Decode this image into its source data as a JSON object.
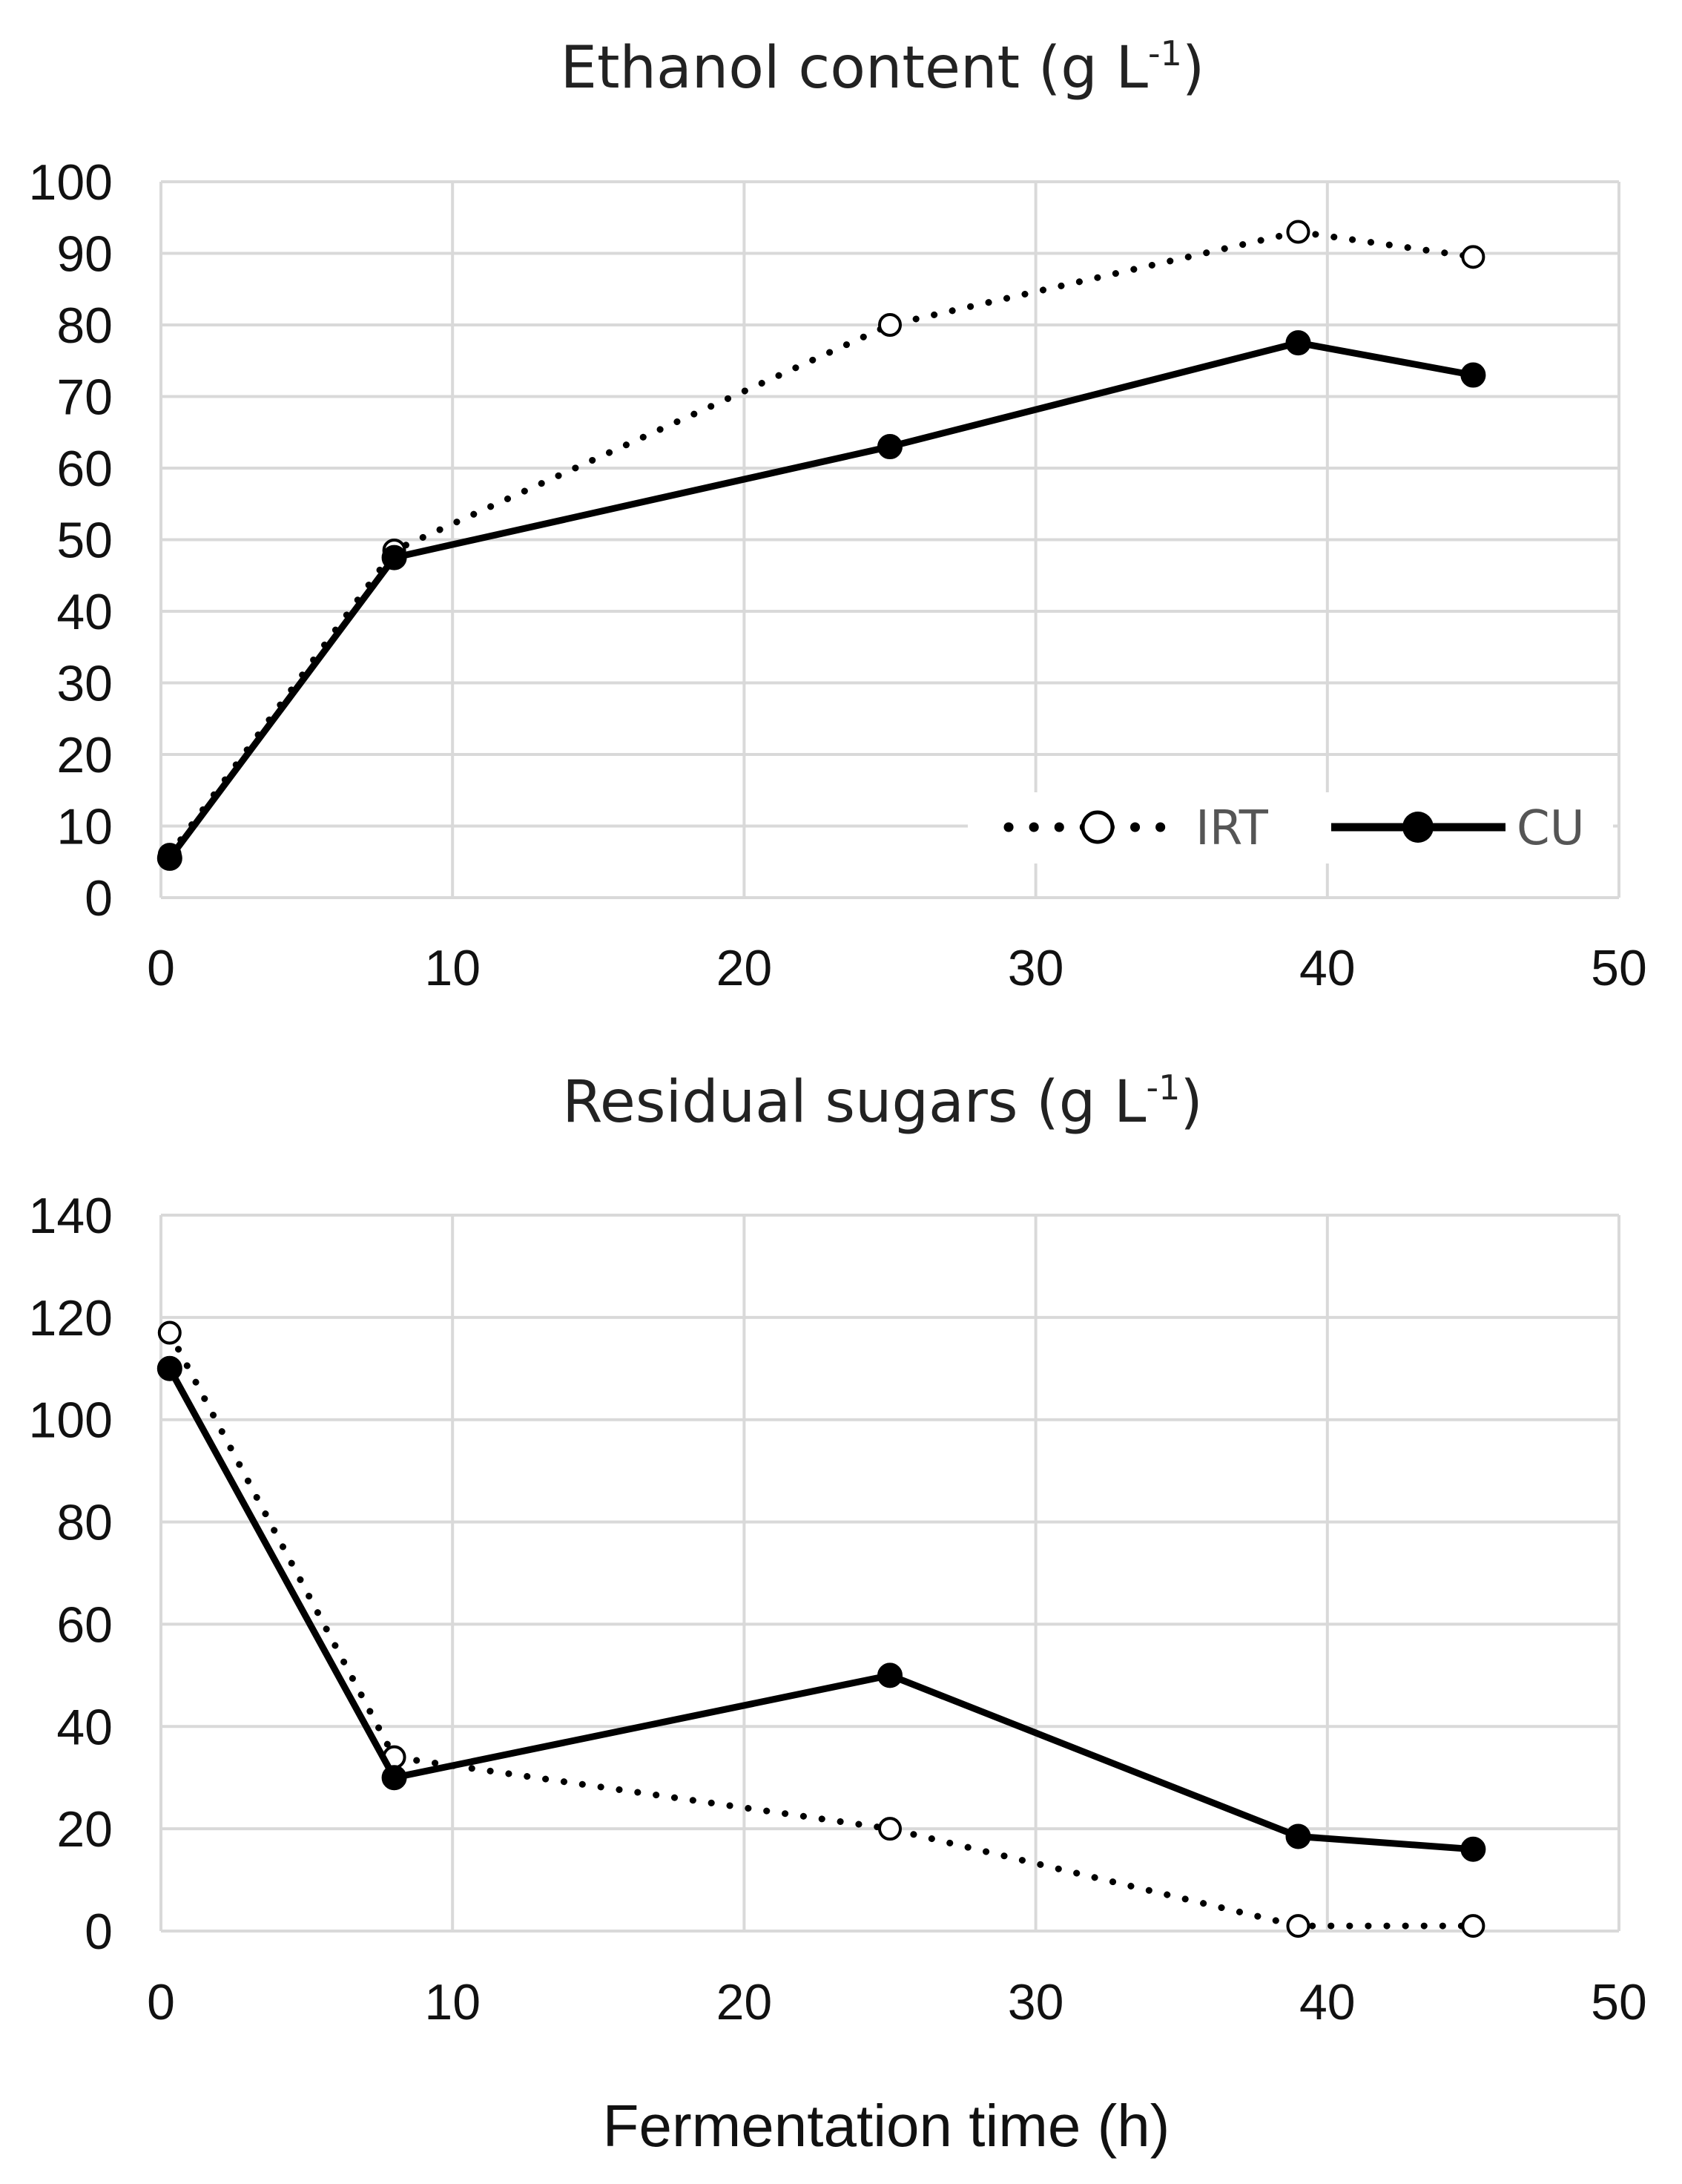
{
  "chart_data": [
    {
      "type": "line",
      "title": "Ethanol content (g L",
      "title_superscript": "-1",
      "title_suffix": ")",
      "xlabel": "",
      "ylabel": "",
      "xlim": [
        0,
        50
      ],
      "ylim": [
        0,
        100
      ],
      "xticks": [
        "0",
        "10",
        "20",
        "30",
        "40",
        "50"
      ],
      "yticks": [
        "0",
        "10",
        "20",
        "30",
        "40",
        "50",
        "60",
        "70",
        "80",
        "90",
        "100"
      ],
      "grid": true,
      "legend_position": "bottom-right",
      "x": [
        0.3,
        8,
        25,
        39,
        45
      ],
      "series": [
        {
          "name": "IRT",
          "style": "dotted",
          "marker": "open-circle",
          "values": [
            6,
            48.5,
            80,
            93,
            89.5
          ]
        },
        {
          "name": "CU",
          "style": "solid",
          "marker": "filled-circle",
          "values": [
            5.5,
            47.5,
            63,
            77.5,
            73
          ]
        }
      ]
    },
    {
      "type": "line",
      "title": "Residual sugars (g L",
      "title_superscript": "-1",
      "title_suffix": ")",
      "xlabel": "Fermentation time (h)",
      "ylabel": "",
      "xlim": [
        0,
        50
      ],
      "ylim": [
        0,
        140
      ],
      "xticks": [
        "0",
        "10",
        "20",
        "30",
        "40",
        "50"
      ],
      "yticks": [
        "0",
        "20",
        "40",
        "60",
        "80",
        "100",
        "120",
        "140"
      ],
      "grid": true,
      "x": [
        0.3,
        8,
        25,
        39,
        45
      ],
      "series": [
        {
          "name": "IRT",
          "style": "dotted",
          "marker": "open-circle",
          "values": [
            117,
            34,
            20,
            1,
            1
          ]
        },
        {
          "name": "CU",
          "style": "solid",
          "marker": "filled-circle",
          "values": [
            110,
            30,
            50,
            18.5,
            16
          ]
        }
      ]
    }
  ]
}
